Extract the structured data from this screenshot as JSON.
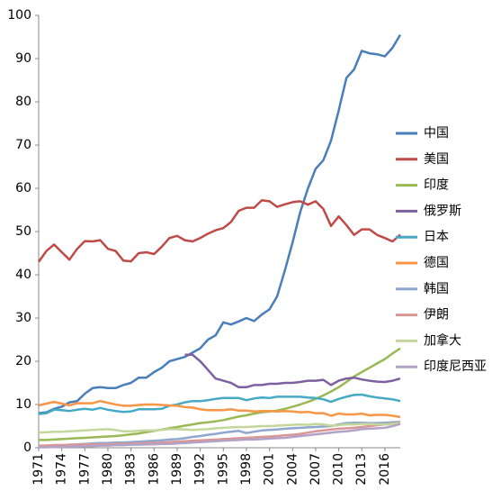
{
  "chart_data": {
    "type": "line",
    "x": [
      1971,
      1972,
      1973,
      1974,
      1975,
      1976,
      1977,
      1978,
      1979,
      1980,
      1981,
      1982,
      1983,
      1984,
      1985,
      1986,
      1987,
      1988,
      1989,
      1990,
      1991,
      1992,
      1993,
      1994,
      1995,
      1996,
      1997,
      1998,
      1999,
      2000,
      2001,
      2002,
      2003,
      2004,
      2005,
      2006,
      2007,
      2008,
      2009,
      2010,
      2011,
      2012,
      2013,
      2014,
      2015,
      2016,
      2017,
      2018
    ],
    "xlim": [
      1971,
      2018
    ],
    "xticks": [
      1971,
      1974,
      1977,
      1980,
      1983,
      1986,
      1989,
      1992,
      1995,
      1998,
      2001,
      2004,
      2007,
      2010,
      2013,
      2016
    ],
    "ylim": [
      0,
      100
    ],
    "yticks": [
      0,
      10,
      20,
      30,
      40,
      50,
      60,
      70,
      80,
      90,
      100
    ],
    "grid": false,
    "legend": "right",
    "series": [
      {
        "name": "中国",
        "color": "#4a7ebb",
        "values": [
          8,
          8.2,
          9,
          9.5,
          10.5,
          10.8,
          12.5,
          13.8,
          14,
          13.8,
          13.8,
          14.5,
          15,
          16.2,
          16.2,
          17.5,
          18.5,
          20,
          20.5,
          21,
          22,
          23,
          25,
          26,
          29,
          28.5,
          29.2,
          30,
          29.3,
          30.8,
          32,
          35,
          41,
          47.5,
          54.5,
          60,
          64.5,
          66.5,
          71,
          78,
          85.5,
          87.5,
          91.8,
          91.2,
          91,
          90.5,
          92.5,
          95.5
        ]
      },
      {
        "name": "美国",
        "color": "#be4b48",
        "values": [
          43,
          45.5,
          47,
          45.2,
          43.5,
          46,
          47.8,
          47.7,
          48,
          46,
          45.5,
          43.3,
          43.1,
          45,
          45.2,
          44.8,
          46.5,
          48.5,
          49,
          48,
          47.7,
          48.5,
          49.5,
          50.3,
          50.8,
          52.2,
          54.8,
          55.5,
          55.5,
          57.2,
          57,
          55.7,
          56.3,
          56.8,
          57,
          56.2,
          57,
          55.2,
          51.3,
          53.5,
          51.5,
          49.2,
          50.5,
          50.5,
          49.2,
          48.5,
          47.7,
          49.3
        ]
      },
      {
        "name": "印度",
        "color": "#98b954",
        "values": [
          1.8,
          1.8,
          1.9,
          2.0,
          2.1,
          2.2,
          2.3,
          2.4,
          2.5,
          2.6,
          2.7,
          2.9,
          3.1,
          3.3,
          3.6,
          3.9,
          4.2,
          4.5,
          4.8,
          5.1,
          5.4,
          5.7,
          5.9,
          6.1,
          6.4,
          6.8,
          7.2,
          7.5,
          7.9,
          8.2,
          8.4,
          8.6,
          9.0,
          9.5,
          10.0,
          10.6,
          11.3,
          12.1,
          13.0,
          14.0,
          15.2,
          16.5,
          17.5,
          18.5,
          19.5,
          20.5,
          21.8,
          23.0
        ]
      },
      {
        "name": "俄罗斯",
        "color": "#7d60a0",
        "values": [
          null,
          null,
          null,
          null,
          null,
          null,
          null,
          null,
          null,
          null,
          null,
          null,
          null,
          null,
          null,
          null,
          null,
          null,
          null,
          21.5,
          21.5,
          20,
          18,
          16,
          15.5,
          15,
          14,
          14,
          14.5,
          14.5,
          14.8,
          14.8,
          15,
          15,
          15.2,
          15.5,
          15.5,
          15.7,
          14.5,
          15.5,
          16,
          16.2,
          15.8,
          15.5,
          15.3,
          15.2,
          15.5,
          16
        ]
      },
      {
        "name": "日本",
        "color": "#46aac5",
        "values": [
          7.8,
          8,
          8.8,
          8.7,
          8.5,
          8.8,
          9,
          8.8,
          9.2,
          8.8,
          8.5,
          8.3,
          8.4,
          8.9,
          8.9,
          8.9,
          9,
          9.7,
          10,
          10.5,
          10.8,
          10.8,
          11,
          11.3,
          11.5,
          11.5,
          11.5,
          11,
          11.4,
          11.6,
          11.5,
          11.8,
          11.8,
          11.8,
          11.8,
          11.6,
          11.5,
          11.2,
          10.6,
          11.3,
          11.8,
          12.2,
          12.3,
          11.9,
          11.6,
          11.4,
          11.2,
          10.8
        ]
      },
      {
        "name": "德国",
        "color": "#f79646",
        "values": [
          9.8,
          10.2,
          10.6,
          10.2,
          9.8,
          10.3,
          10.3,
          10.3,
          10.8,
          10.4,
          10,
          9.7,
          9.7,
          9.9,
          10,
          10,
          9.9,
          9.8,
          9.7,
          9.4,
          9.3,
          8.9,
          8.7,
          8.7,
          8.7,
          8.9,
          8.6,
          8.6,
          8.4,
          8.5,
          8.5,
          8.4,
          8.5,
          8.4,
          8.2,
          8.3,
          8,
          8,
          7.4,
          7.9,
          7.7,
          7.7,
          7.9,
          7.5,
          7.6,
          7.6,
          7.4,
          7.1
        ]
      },
      {
        "name": "韩国",
        "color": "#8fa7cf",
        "values": [
          0.4,
          0.5,
          0.6,
          0.6,
          0.7,
          0.8,
          0.9,
          1.0,
          1.1,
          1.1,
          1.2,
          1.2,
          1.3,
          1.4,
          1.5,
          1.6,
          1.7,
          1.9,
          2.0,
          2.2,
          2.5,
          2.7,
          3.0,
          3.2,
          3.5,
          3.7,
          3.9,
          3.4,
          3.7,
          4.0,
          4.1,
          4.2,
          4.4,
          4.5,
          4.6,
          4.7,
          4.8,
          4.9,
          5.0,
          5.4,
          5.7,
          5.8,
          5.8,
          5.7,
          5.7,
          5.8,
          5.9,
          6.0
        ]
      },
      {
        "name": "伊朗",
        "color": "#d99694",
        "values": [
          0.5,
          0.5,
          0.6,
          0.6,
          0.7,
          0.7,
          0.8,
          0.8,
          0.8,
          0.8,
          0.9,
          0.9,
          1.0,
          1.0,
          1.1,
          1.1,
          1.2,
          1.3,
          1.4,
          1.5,
          1.6,
          1.7,
          1.8,
          1.9,
          2.0,
          2.1,
          2.2,
          2.3,
          2.4,
          2.5,
          2.6,
          2.7,
          2.9,
          3.0,
          3.2,
          3.5,
          3.8,
          4.0,
          4.2,
          4.4,
          4.5,
          4.6,
          4.8,
          5.0,
          5.2,
          5.4,
          5.6,
          5.8
        ]
      },
      {
        "name": "加拿大",
        "color": "#c4d79b",
        "values": [
          3.5,
          3.6,
          3.7,
          3.7,
          3.8,
          3.9,
          4.0,
          4.1,
          4.2,
          4.3,
          4.1,
          3.8,
          3.8,
          3.9,
          4.0,
          4.0,
          4.1,
          4.3,
          4.3,
          4.2,
          4.1,
          4.2,
          4.3,
          4.5,
          4.6,
          4.7,
          4.8,
          4.8,
          4.9,
          5.0,
          5.0,
          5.1,
          5.2,
          5.3,
          5.4,
          5.3,
          5.5,
          5.4,
          5.1,
          5.2,
          5.4,
          5.4,
          5.5,
          5.5,
          5.4,
          5.4,
          5.5,
          5.7
        ]
      },
      {
        "name": "印度尼西亚",
        "color": "#b3a2c7",
        "values": [
          0.1,
          0.1,
          0.2,
          0.2,
          0.3,
          0.3,
          0.4,
          0.4,
          0.5,
          0.5,
          0.6,
          0.6,
          0.7,
          0.7,
          0.8,
          0.8,
          0.9,
          0.9,
          1.0,
          1.1,
          1.2,
          1.3,
          1.4,
          1.5,
          1.6,
          1.7,
          1.8,
          1.9,
          1.9,
          2.0,
          2.1,
          2.2,
          2.3,
          2.5,
          2.7,
          2.9,
          3.1,
          3.3,
          3.5,
          3.7,
          3.8,
          4.0,
          4.3,
          4.4,
          4.5,
          4.6,
          5.0,
          5.5
        ]
      }
    ]
  }
}
